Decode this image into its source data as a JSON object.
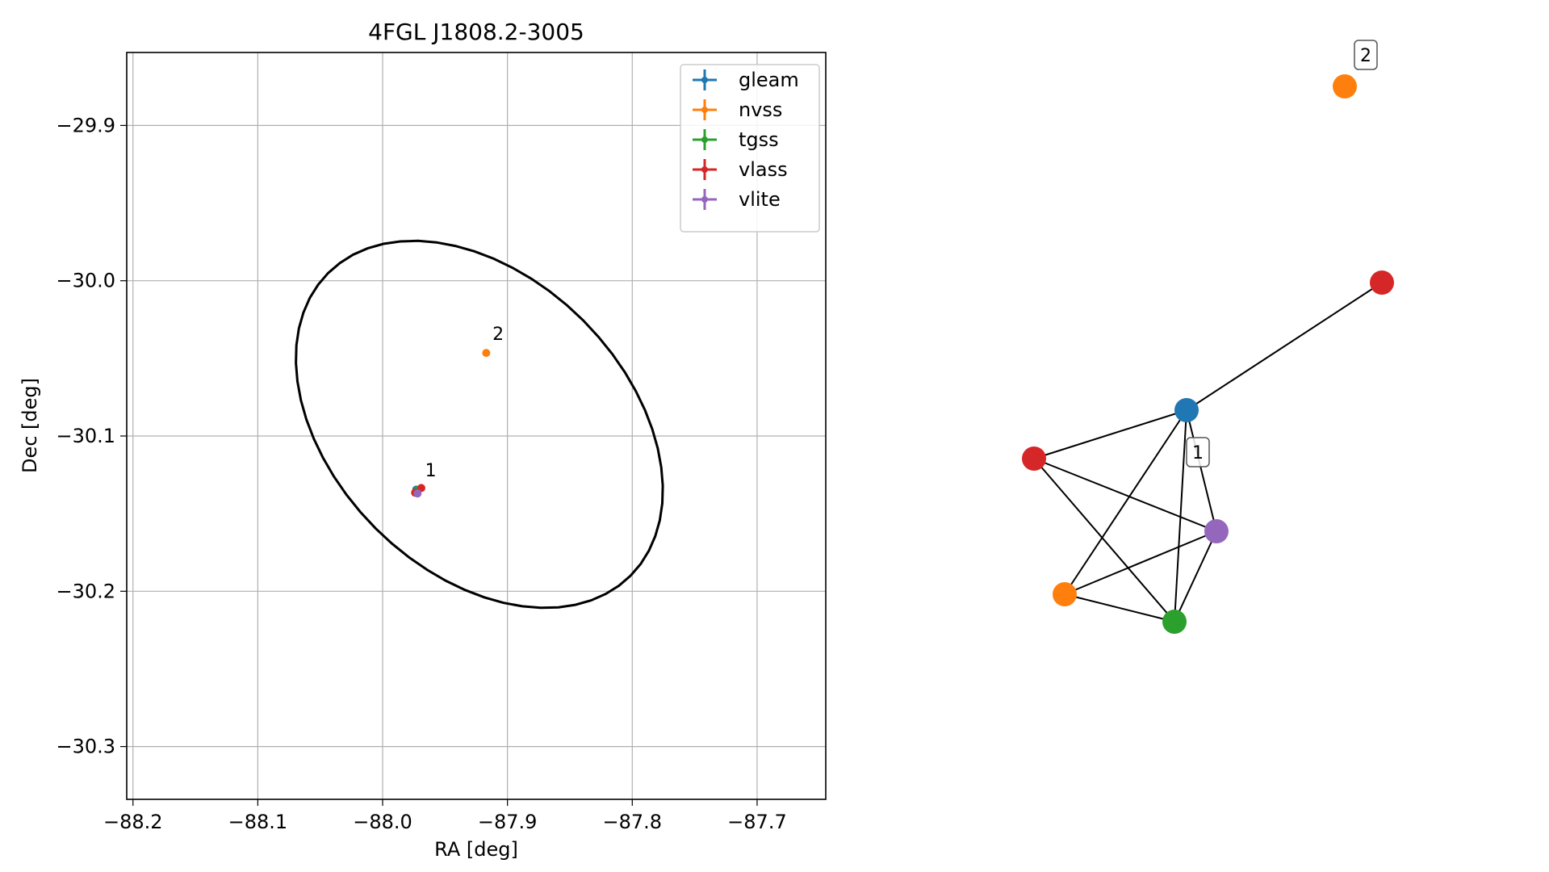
{
  "chart_data": [
    {
      "type": "scatter",
      "title": "4FGL J1808.2-3005",
      "xlabel": "RA [deg]",
      "ylabel": "Dec [deg]",
      "xlim": [
        -88.205,
        -87.645
      ],
      "ylim": [
        -30.334,
        -29.853
      ],
      "xticks": [
        -88.2,
        -88.1,
        -88.0,
        -87.9,
        -87.8,
        -87.7
      ],
      "xtick_labels": [
        "−88.2",
        "−88.1",
        "−88.0",
        "−87.9",
        "−87.8",
        "−87.7"
      ],
      "yticks": [
        -29.9,
        -30.0,
        -30.1,
        -30.2,
        -30.3
      ],
      "ytick_labels": [
        "−29.9",
        "−30.0",
        "−30.1",
        "−30.2",
        "−30.3"
      ],
      "grid": true,
      "legend_position": "top-right",
      "series": [
        {
          "name": "gleam",
          "color": "#1f77b4",
          "points": [
            {
              "x": -87.973,
              "y": -30.1345
            }
          ]
        },
        {
          "name": "nvss",
          "color": "#ff7f0e",
          "points": [
            {
              "x": -87.972,
              "y": -30.1355
            },
            {
              "x": -87.917,
              "y": -30.0465
            }
          ]
        },
        {
          "name": "tgss",
          "color": "#2ca02c",
          "points": [
            {
              "x": -87.972,
              "y": -30.135
            }
          ]
        },
        {
          "name": "vlass",
          "color": "#d62728",
          "points": [
            {
              "x": -87.974,
              "y": -30.1365
            },
            {
              "x": -87.969,
              "y": -30.1335
            }
          ]
        },
        {
          "name": "vlite",
          "color": "#9467bd",
          "points": [
            {
              "x": -87.972,
              "y": -30.137
            }
          ]
        }
      ],
      "annotations": [
        {
          "text": "1",
          "x": -87.966,
          "y": -30.126
        },
        {
          "text": "2",
          "x": -87.912,
          "y": -30.038
        }
      ],
      "ellipse": {
        "center_x": -87.9225,
        "center_y": -30.0925,
        "points": 60
      }
    },
    {
      "type": "network",
      "nodes": [
        {
          "id": "gleam-1",
          "color": "#1f77b4"
        },
        {
          "id": "vlass-1",
          "color": "#d62728"
        },
        {
          "id": "vlite-1",
          "color": "#9467bd"
        },
        {
          "id": "nvss-1",
          "color": "#ff7f0e"
        },
        {
          "id": "tgss-1",
          "color": "#2ca02c"
        },
        {
          "id": "vlass-2",
          "color": "#d62728"
        },
        {
          "id": "nvss-2",
          "color": "#ff7f0e"
        }
      ],
      "edges": [
        [
          "gleam-1",
          "vlass-2"
        ],
        [
          "gleam-1",
          "vlass-1"
        ],
        [
          "gleam-1",
          "vlite-1"
        ],
        [
          "gleam-1",
          "nvss-1"
        ],
        [
          "gleam-1",
          "tgss-1"
        ],
        [
          "vlass-1",
          "vlite-1"
        ],
        [
          "vlass-1",
          "tgss-1"
        ],
        [
          "nvss-1",
          "vlite-1"
        ],
        [
          "nvss-1",
          "tgss-1"
        ],
        [
          "tgss-1",
          "vlite-1"
        ]
      ],
      "group_labels": [
        {
          "text": "1",
          "near": "gleam-1"
        },
        {
          "text": "2",
          "near": "nvss-2"
        }
      ]
    }
  ]
}
